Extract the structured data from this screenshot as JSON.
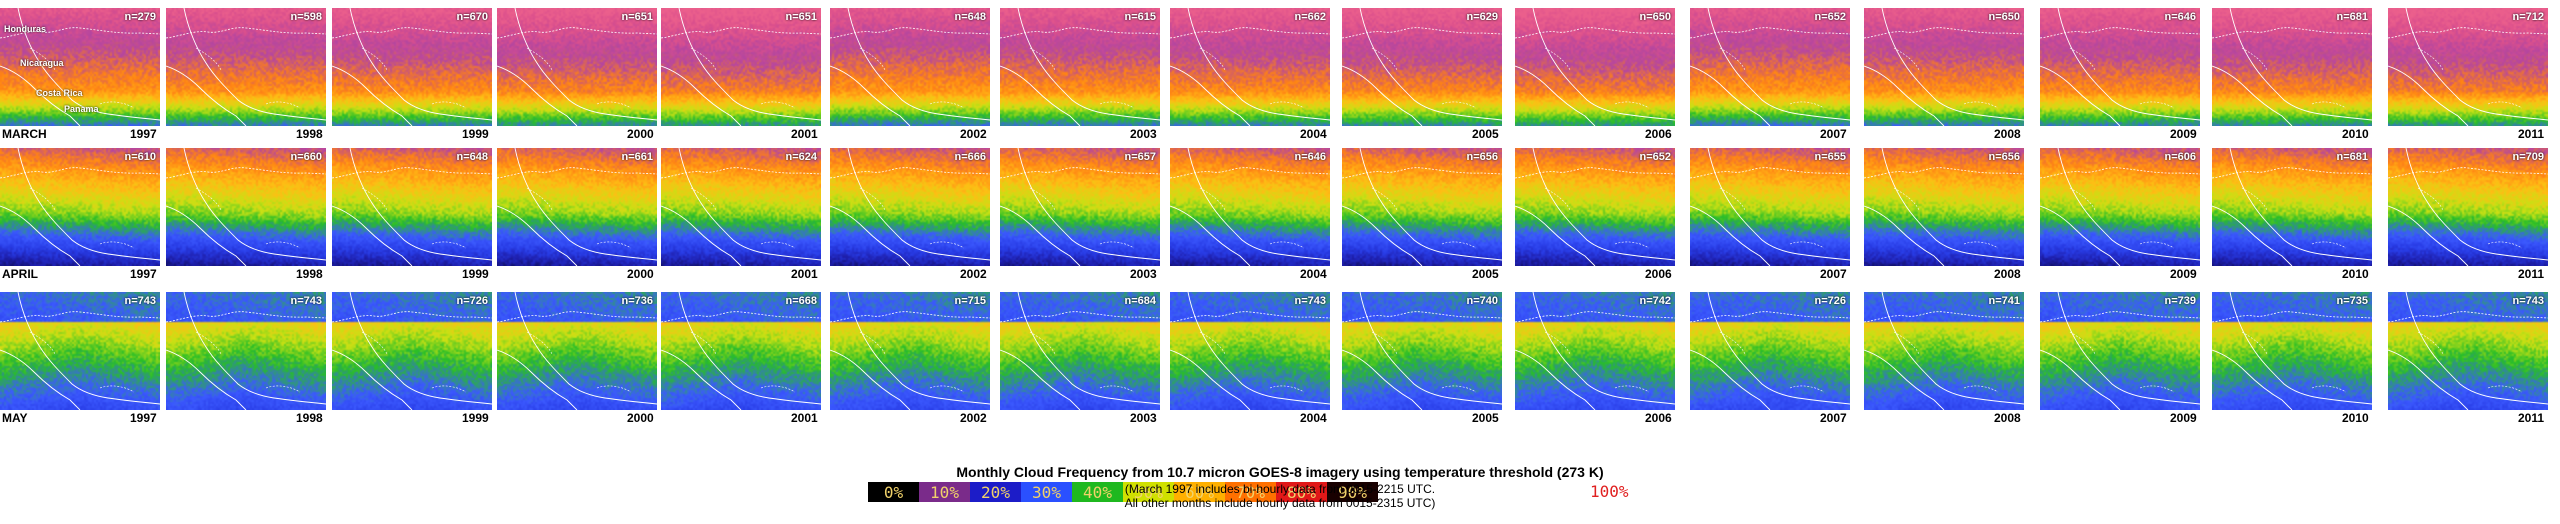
{
  "months": [
    "MARCH",
    "APRIL",
    "MAY"
  ],
  "years": [
    "1997",
    "1998",
    "1999",
    "2000",
    "2001",
    "2002",
    "2003",
    "2004",
    "2005",
    "2006",
    "2007",
    "2008",
    "2009",
    "2010",
    "2011"
  ],
  "sample_counts": {
    "MARCH": [
      "n=279",
      "n=598",
      "n=670",
      "n=651",
      "n=651",
      "n=648",
      "n=615",
      "n=662",
      "n=629",
      "n=650",
      "n=652",
      "n=650",
      "n=646",
      "n=681",
      "n=712"
    ],
    "APRIL": [
      "n=610",
      "n=660",
      "n=648",
      "n=661",
      "n=624",
      "n=666",
      "n=657",
      "n=646",
      "n=656",
      "n=652",
      "n=655",
      "n=656",
      "n=606",
      "n=681",
      "n=709"
    ],
    "MAY": [
      "n=743",
      "n=743",
      "n=726",
      "n=736",
      "n=668",
      "n=715",
      "n=684",
      "n=743",
      "n=740",
      "n=742",
      "n=726",
      "n=741",
      "n=739",
      "n=735",
      "n=743"
    ]
  },
  "country_labels": [
    "Honduras",
    "Nicaragua",
    "Costa Rica",
    "Panama"
  ],
  "legend": {
    "labels": [
      "0%",
      "10%",
      "20%",
      "30%",
      "40%",
      "50%",
      "60%",
      "70%",
      "80%",
      "90%",
      "100%"
    ],
    "colors": [
      "#000000",
      "#7a2b8a",
      "#1c1cc8",
      "#2a50ff",
      "#1fb81f",
      "#d0e000",
      "#ffb000",
      "#ff7000",
      "#e01818",
      "#180000"
    ]
  },
  "caption": {
    "title": "Monthly Cloud Frequency from 10.7 micron GOES-8 imagery using temperature threshold (273 K)",
    "line1": "(March 1997 includes bi-hourly data from 0015-2215 UTC.",
    "line2": "All other months include hourly data from 0015-2315 UTC)"
  }
}
